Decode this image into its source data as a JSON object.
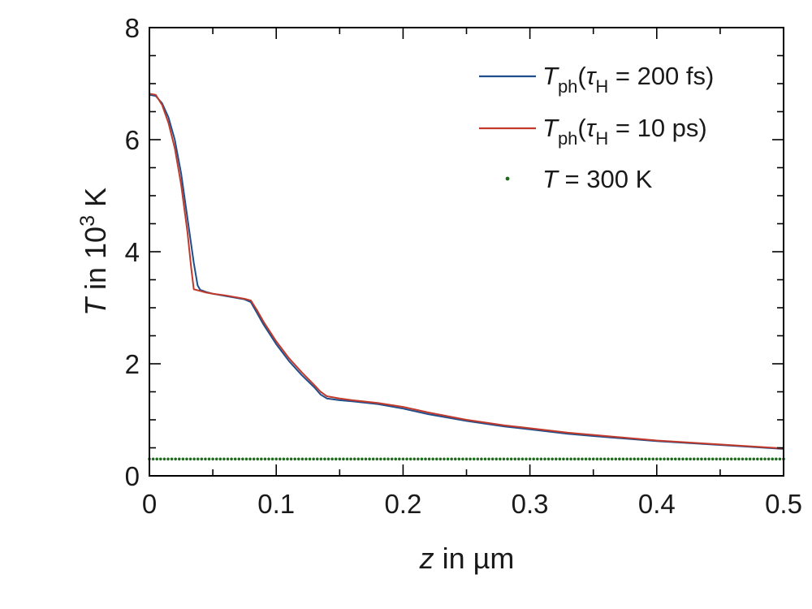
{
  "chart_data": {
    "type": "line",
    "xlabel": {
      "var": "z",
      "rest": " in µm"
    },
    "ylabel": {
      "var": "T",
      "rest": " in 10",
      "sup": "3",
      "unit": " K"
    },
    "xlim": [
      0,
      0.5
    ],
    "ylim": [
      0,
      8
    ],
    "xticks": [
      {
        "v": 0,
        "label": "0"
      },
      {
        "v": 0.1,
        "label": "0.1"
      },
      {
        "v": 0.2,
        "label": "0.2"
      },
      {
        "v": 0.3,
        "label": "0.3"
      },
      {
        "v": 0.4,
        "label": "0.4"
      },
      {
        "v": 0.5,
        "label": "0.5"
      }
    ],
    "yticks": [
      {
        "v": 0,
        "label": "0"
      },
      {
        "v": 2,
        "label": "2"
      },
      {
        "v": 4,
        "label": "4"
      },
      {
        "v": 6,
        "label": "6"
      },
      {
        "v": 8,
        "label": "8"
      }
    ],
    "grid": false,
    "legend_position": "top-right",
    "series": [
      {
        "legend": {
          "var": "T",
          "sub": "ph",
          "open": "(",
          "tau": "τ",
          "tau_sub": "H",
          "value": " = 200 fs)"
        },
        "color": "#1f4e8c",
        "style": "line",
        "x": [
          0,
          0.005,
          0.01,
          0.015,
          0.02,
          0.025,
          0.03,
          0.035,
          0.038,
          0.04,
          0.045,
          0.05,
          0.06,
          0.07,
          0.075,
          0.08,
          0.085,
          0.09,
          0.1,
          0.11,
          0.12,
          0.13,
          0.135,
          0.14,
          0.15,
          0.16,
          0.18,
          0.2,
          0.22,
          0.25,
          0.28,
          0.3,
          0.33,
          0.35,
          0.4,
          0.45,
          0.5
        ],
        "y": [
          6.8,
          6.78,
          6.65,
          6.4,
          6.0,
          5.4,
          4.6,
          3.8,
          3.4,
          3.32,
          3.28,
          3.25,
          3.21,
          3.17,
          3.15,
          3.1,
          2.9,
          2.7,
          2.35,
          2.05,
          1.8,
          1.58,
          1.45,
          1.38,
          1.35,
          1.33,
          1.28,
          1.2,
          1.1,
          0.98,
          0.88,
          0.83,
          0.75,
          0.71,
          0.62,
          0.55,
          0.48
        ]
      },
      {
        "legend": {
          "var": "T",
          "sub": "ph",
          "open": "(",
          "tau": "τ",
          "tau_sub": "H",
          "value": " = 10 ps)"
        },
        "color": "#c0392b",
        "style": "line",
        "x": [
          0,
          0.005,
          0.01,
          0.015,
          0.02,
          0.025,
          0.03,
          0.033,
          0.035,
          0.04,
          0.045,
          0.05,
          0.06,
          0.07,
          0.075,
          0.08,
          0.085,
          0.09,
          0.1,
          0.11,
          0.12,
          0.13,
          0.135,
          0.14,
          0.15,
          0.16,
          0.18,
          0.2,
          0.22,
          0.25,
          0.28,
          0.3,
          0.33,
          0.35,
          0.4,
          0.45,
          0.5
        ],
        "y": [
          6.82,
          6.8,
          6.62,
          6.3,
          5.85,
          5.2,
          4.35,
          3.7,
          3.33,
          3.3,
          3.27,
          3.25,
          3.22,
          3.18,
          3.16,
          3.13,
          2.95,
          2.75,
          2.4,
          2.1,
          1.85,
          1.62,
          1.5,
          1.42,
          1.38,
          1.35,
          1.3,
          1.23,
          1.13,
          1.0,
          0.9,
          0.85,
          0.77,
          0.73,
          0.63,
          0.56,
          0.49
        ]
      },
      {
        "legend": {
          "var": "T",
          "value": " = 300 K"
        },
        "color": "#1e6b1e",
        "style": "dotted",
        "x": [
          0,
          0.5
        ],
        "y": [
          0.3,
          0.3
        ]
      }
    ]
  }
}
